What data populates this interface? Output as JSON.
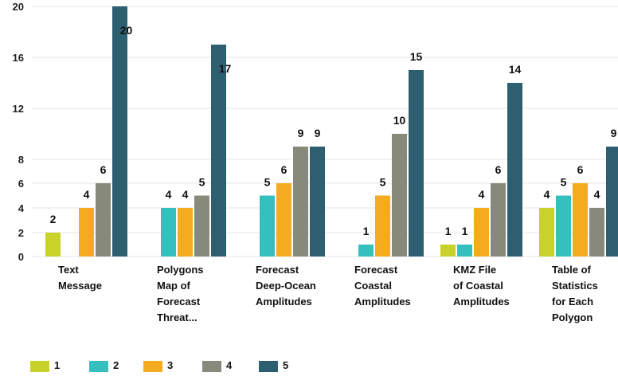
{
  "chart_data": {
    "type": "bar",
    "categories": [
      [
        "Text",
        "Message"
      ],
      [
        "Polygons",
        "Map of",
        "Forecast",
        "Threat..."
      ],
      [
        "Forecast",
        "Deep-Ocean",
        "Amplitudes"
      ],
      [
        "Forecast",
        "Coastal",
        "Amplitudes"
      ],
      [
        "KMZ File",
        "of Coastal",
        "Amplitudes"
      ],
      [
        "Table of",
        "Statistics",
        "for Each",
        "Polygon"
      ]
    ],
    "series": [
      {
        "name": "1",
        "color": "#c9d22b",
        "values": [
          2,
          null,
          null,
          null,
          1,
          4
        ]
      },
      {
        "name": "2",
        "color": "#36bfbf",
        "values": [
          null,
          4,
          5,
          1,
          1,
          5
        ]
      },
      {
        "name": "3",
        "color": "#f5ab1f",
        "values": [
          4,
          4,
          6,
          5,
          4,
          6
        ]
      },
      {
        "name": "4",
        "color": "#878a7a",
        "values": [
          6,
          5,
          9,
          10,
          6,
          4
        ]
      },
      {
        "name": "5",
        "color": "#2e5f70",
        "values": [
          20,
          17,
          9,
          15,
          14,
          9
        ]
      }
    ],
    "yticks": [
      0,
      2,
      4,
      6,
      8,
      12,
      16,
      20
    ],
    "ylim": [
      0,
      20
    ],
    "grid": true,
    "legend_position": "bottom-left"
  }
}
